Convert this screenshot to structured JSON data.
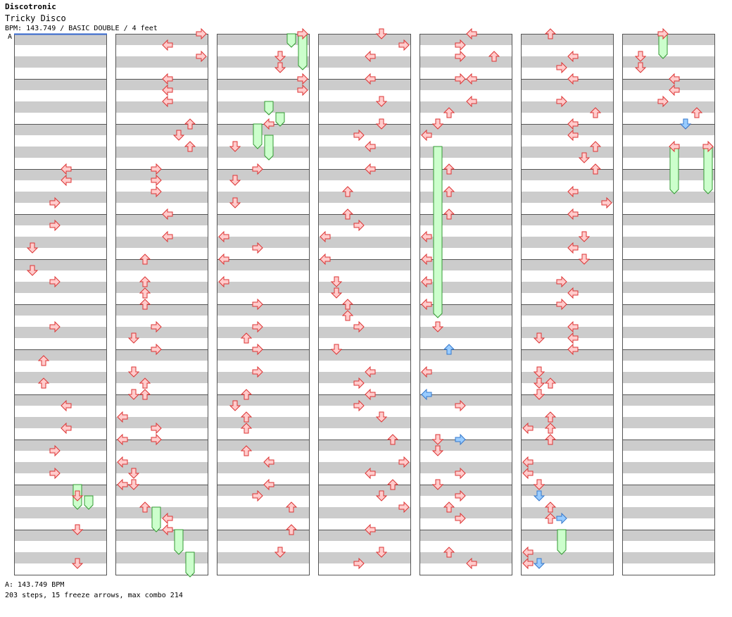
{
  "header": {
    "artist": "Discotronic",
    "title": "Tricky Disco",
    "info": "BPM: 143.749 / BASIC DOUBLE / 4 feet",
    "bpm_marker": "A"
  },
  "footer": {
    "bpm_legend": "A: 143.749 BPM",
    "stats": "203 steps, 15 freeze arrows, max combo 214"
  },
  "colors": {
    "stripe": "#cccccc",
    "background": "#ffffff",
    "measure_line": "#555555",
    "arrow_fill": "#ffcccc",
    "arrow_stroke": "#dd3333",
    "shock_fill": "#99ccff",
    "shock_stroke": "#3377cc",
    "freeze_fill": "#ccffcc",
    "freeze_stroke": "#339933",
    "bpm_line": "#3366cc"
  },
  "chart_data": {
    "type": "step-chart",
    "mode": "BASIC DOUBLE",
    "bpm": 143.749,
    "columns": 7,
    "measures_per_column": 12,
    "lanes": [
      "left-1",
      "down-1",
      "up-1",
      "right-1",
      "left-2",
      "down-2",
      "up-2",
      "right-2"
    ],
    "notes": [
      [
        0,
        12,
        4
      ],
      [
        0,
        13,
        4
      ],
      [
        0,
        15,
        3
      ],
      [
        0,
        17,
        3
      ],
      [
        0,
        19,
        1
      ],
      [
        0,
        21,
        1
      ],
      [
        0,
        22,
        3
      ],
      [
        0,
        26,
        3
      ],
      [
        0,
        29,
        2
      ],
      [
        0,
        31,
        2
      ],
      [
        0,
        33,
        4
      ],
      [
        0,
        35,
        4
      ],
      [
        0,
        37,
        3
      ],
      [
        0,
        39,
        3
      ],
      [
        0,
        41,
        5
      ],
      [
        0,
        44,
        5
      ],
      [
        0,
        47,
        5
      ],
      [
        1,
        0,
        7
      ],
      [
        1,
        1,
        4
      ],
      [
        1,
        2,
        7
      ],
      [
        1,
        4,
        4
      ],
      [
        1,
        5,
        4
      ],
      [
        1,
        6,
        4
      ],
      [
        1,
        8,
        6
      ],
      [
        1,
        9,
        5
      ],
      [
        1,
        10,
        6
      ],
      [
        1,
        12,
        3
      ],
      [
        1,
        13,
        3
      ],
      [
        1,
        14,
        3
      ],
      [
        1,
        16,
        4
      ],
      [
        1,
        18,
        4
      ],
      [
        1,
        20,
        2
      ],
      [
        1,
        22,
        2
      ],
      [
        1,
        23,
        2
      ],
      [
        1,
        24,
        2
      ],
      [
        1,
        26,
        3
      ],
      [
        1,
        27,
        1
      ],
      [
        1,
        28,
        3
      ],
      [
        1,
        30,
        1
      ],
      [
        1,
        31,
        2
      ],
      [
        1,
        32,
        1
      ],
      [
        1,
        32,
        2
      ],
      [
        1,
        34,
        0
      ],
      [
        1,
        35,
        3
      ],
      [
        1,
        36,
        0
      ],
      [
        1,
        36,
        3
      ],
      [
        1,
        38,
        0
      ],
      [
        1,
        39,
        1
      ],
      [
        1,
        40,
        0
      ],
      [
        1,
        40,
        1
      ],
      [
        1,
        42,
        2
      ],
      [
        1,
        43,
        4
      ],
      [
        1,
        44,
        4
      ],
      [
        2,
        0,
        7
      ],
      [
        2,
        2,
        5
      ],
      [
        2,
        3,
        5
      ],
      [
        2,
        4,
        7
      ],
      [
        2,
        5,
        7
      ],
      [
        2,
        8,
        4
      ],
      [
        2,
        10,
        1
      ],
      [
        2,
        12,
        3
      ],
      [
        2,
        13,
        1
      ],
      [
        2,
        15,
        1
      ],
      [
        2,
        18,
        0
      ],
      [
        2,
        19,
        3
      ],
      [
        2,
        20,
        0
      ],
      [
        2,
        22,
        0
      ],
      [
        2,
        24,
        3
      ],
      [
        2,
        26,
        3
      ],
      [
        2,
        27,
        2
      ],
      [
        2,
        28,
        3
      ],
      [
        2,
        30,
        3
      ],
      [
        2,
        32,
        2
      ],
      [
        2,
        33,
        1
      ],
      [
        2,
        34,
        2
      ],
      [
        2,
        35,
        2
      ],
      [
        2,
        37,
        2
      ],
      [
        2,
        38,
        4
      ],
      [
        2,
        40,
        4
      ],
      [
        2,
        41,
        3
      ],
      [
        2,
        42,
        6
      ],
      [
        2,
        44,
        6
      ],
      [
        2,
        46,
        5
      ],
      [
        3,
        0,
        5
      ],
      [
        3,
        1,
        7
      ],
      [
        3,
        2,
        4
      ],
      [
        3,
        4,
        4
      ],
      [
        3,
        6,
        5
      ],
      [
        3,
        8,
        5
      ],
      [
        3,
        9,
        3
      ],
      [
        3,
        10,
        4
      ],
      [
        3,
        12,
        4
      ],
      [
        3,
        14,
        2
      ],
      [
        3,
        16,
        2
      ],
      [
        3,
        17,
        3
      ],
      [
        3,
        18,
        0
      ],
      [
        3,
        20,
        0
      ],
      [
        3,
        22,
        1
      ],
      [
        3,
        23,
        1
      ],
      [
        3,
        24,
        2
      ],
      [
        3,
        25,
        2
      ],
      [
        3,
        26,
        3
      ],
      [
        3,
        28,
        1
      ],
      [
        3,
        30,
        4
      ],
      [
        3,
        31,
        3
      ],
      [
        3,
        32,
        4
      ],
      [
        3,
        33,
        3
      ],
      [
        3,
        34,
        5
      ],
      [
        3,
        36,
        6
      ],
      [
        3,
        38,
        7
      ],
      [
        3,
        39,
        4
      ],
      [
        3,
        40,
        6
      ],
      [
        3,
        41,
        5
      ],
      [
        3,
        42,
        7
      ],
      [
        3,
        44,
        4
      ],
      [
        3,
        46,
        5
      ],
      [
        3,
        47,
        3
      ],
      [
        4,
        0,
        4
      ],
      [
        4,
        1,
        3
      ],
      [
        4,
        2,
        3
      ],
      [
        4,
        2,
        6
      ],
      [
        4,
        4,
        3
      ],
      [
        4,
        4,
        4
      ],
      [
        4,
        6,
        4
      ],
      [
        4,
        7,
        2
      ],
      [
        4,
        8,
        1
      ],
      [
        4,
        9,
        0
      ],
      [
        4,
        12,
        2
      ],
      [
        4,
        14,
        2
      ],
      [
        4,
        16,
        2
      ],
      [
        4,
        18,
        0
      ],
      [
        4,
        20,
        0
      ],
      [
        4,
        22,
        0
      ],
      [
        4,
        24,
        0
      ],
      [
        4,
        26,
        1
      ],
      [
        4,
        30,
        0
      ],
      [
        4,
        33,
        3
      ],
      [
        4,
        36,
        1
      ],
      [
        4,
        37,
        1
      ],
      [
        4,
        39,
        3
      ],
      [
        4,
        40,
        1
      ],
      [
        4,
        41,
        3
      ],
      [
        4,
        42,
        2
      ],
      [
        4,
        43,
        3
      ],
      [
        4,
        46,
        2
      ],
      [
        4,
        47,
        4
      ],
      [
        5,
        0,
        2
      ],
      [
        5,
        2,
        4
      ],
      [
        5,
        3,
        3
      ],
      [
        5,
        4,
        4
      ],
      [
        5,
        6,
        3
      ],
      [
        5,
        7,
        6
      ],
      [
        5,
        8,
        4
      ],
      [
        5,
        9,
        4
      ],
      [
        5,
        10,
        6
      ],
      [
        5,
        11,
        5
      ],
      [
        5,
        12,
        6
      ],
      [
        5,
        14,
        4
      ],
      [
        5,
        15,
        7
      ],
      [
        5,
        16,
        4
      ],
      [
        5,
        18,
        5
      ],
      [
        5,
        19,
        4
      ],
      [
        5,
        20,
        5
      ],
      [
        5,
        22,
        3
      ],
      [
        5,
        23,
        4
      ],
      [
        5,
        24,
        3
      ],
      [
        5,
        26,
        4
      ],
      [
        5,
        27,
        1
      ],
      [
        5,
        27,
        4
      ],
      [
        5,
        28,
        4
      ],
      [
        5,
        30,
        1
      ],
      [
        5,
        31,
        1
      ],
      [
        5,
        31,
        2
      ],
      [
        5,
        32,
        1
      ],
      [
        5,
        34,
        2
      ],
      [
        5,
        35,
        0
      ],
      [
        5,
        35,
        2
      ],
      [
        5,
        36,
        2
      ],
      [
        5,
        38,
        0
      ],
      [
        5,
        39,
        0
      ],
      [
        5,
        40,
        1
      ],
      [
        5,
        42,
        2
      ],
      [
        5,
        43,
        2
      ],
      [
        5,
        46,
        0
      ],
      [
        5,
        47,
        0
      ],
      [
        6,
        0,
        3
      ],
      [
        6,
        2,
        1
      ],
      [
        6,
        3,
        1
      ],
      [
        6,
        4,
        4
      ],
      [
        6,
        5,
        4
      ],
      [
        6,
        6,
        3
      ],
      [
        6,
        7,
        6
      ],
      [
        6,
        8,
        5
      ],
      [
        6,
        10,
        4
      ],
      [
        6,
        10,
        7
      ]
    ],
    "shock_arrows": [
      [
        4,
        28,
        2
      ],
      [
        4,
        32,
        0
      ],
      [
        4,
        36,
        3
      ],
      [
        5,
        41,
        1
      ],
      [
        5,
        43,
        3
      ],
      [
        5,
        47,
        1
      ],
      [
        6,
        8,
        5
      ]
    ],
    "freeze_arrows": [
      [
        0,
        40,
        5,
        42
      ],
      [
        0,
        41,
        6,
        42
      ],
      [
        1,
        42,
        3,
        44
      ],
      [
        1,
        44,
        5,
        46
      ],
      [
        1,
        46,
        6,
        48
      ],
      [
        2,
        0,
        6,
        1
      ],
      [
        2,
        0,
        7,
        3
      ],
      [
        2,
        6,
        4,
        7
      ],
      [
        2,
        7,
        5,
        8
      ],
      [
        2,
        8,
        3,
        10
      ],
      [
        2,
        9,
        4,
        11
      ],
      [
        4,
        10,
        1,
        25
      ],
      [
        5,
        44,
        3,
        46
      ],
      [
        6,
        0,
        3,
        2
      ],
      [
        6,
        10,
        4,
        14
      ],
      [
        6,
        10,
        7,
        14
      ]
    ]
  }
}
